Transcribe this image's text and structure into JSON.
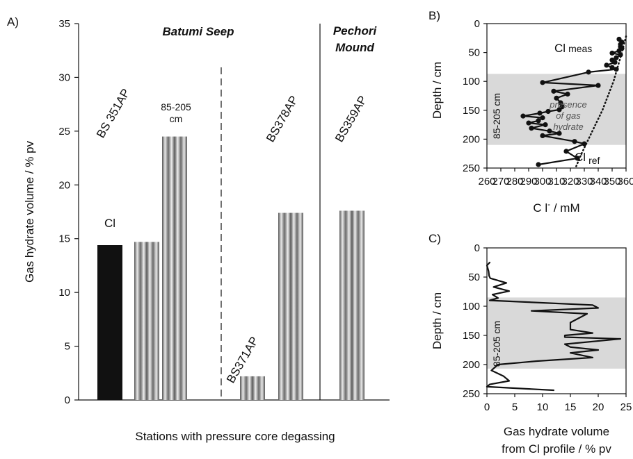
{
  "chart_data": [
    {
      "type": "bar",
      "panel_label": "A)",
      "ylabel": "Gas hydrate volume / % pv",
      "xlabel": "Stations with pressure core degassing",
      "ylim": [
        0,
        35
      ],
      "yticks": [
        0,
        5,
        10,
        15,
        20,
        25,
        30,
        35
      ],
      "sites": [
        "Batumi Seep",
        "Pechori Mound"
      ],
      "bars": [
        {
          "value": 14.4,
          "style": "solid-black",
          "label": "Cl"
        },
        {
          "value": 14.7,
          "style": "gradient-gray"
        },
        {
          "value": 24.5,
          "style": "gradient-gray",
          "label": "85-205 cm"
        },
        {
          "value": 2.2,
          "style": "gradient-gray"
        },
        {
          "value": 17.4,
          "style": "gradient-gray"
        },
        {
          "value": 17.6,
          "style": "gradient-gray"
        }
      ],
      "station_labels": [
        "BS 351AP",
        "BS371AP",
        "BS378AP",
        "BS359AP"
      ]
    },
    {
      "type": "line",
      "panel_label": "B)",
      "ylabel": "Depth / cm",
      "xlabel": "Cl⁻ / mM",
      "xlim": [
        260,
        360
      ],
      "xticks": [
        260,
        270,
        280,
        290,
        300,
        310,
        320,
        330,
        340,
        350,
        360
      ],
      "ylim": [
        0,
        250
      ],
      "yticks": [
        0,
        50,
        100,
        150,
        200,
        250
      ],
      "y_inverted": true,
      "shaded_depth_range": [
        87,
        210
      ],
      "shaded_label": "85-205 cm",
      "annotation": "presence of gas hydrate",
      "series": [
        {
          "name": "Cl meas",
          "x": [
            355,
            357,
            356,
            356,
            357,
            355,
            350,
            356,
            353,
            350,
            352,
            346,
            350,
            353,
            333,
            300,
            340,
            308,
            318,
            310,
            313,
            314,
            312,
            304,
            298,
            286,
            300,
            297,
            290,
            302,
            292,
            305,
            312,
            300,
            323,
            330,
            317,
            325,
            297
          ],
          "y": [
            27,
            32,
            36,
            40,
            43,
            47,
            51,
            54,
            59,
            63,
            67,
            72,
            76,
            79,
            84,
            102,
            107,
            117,
            122,
            129,
            137,
            144,
            149,
            152,
            155,
            160,
            163,
            168,
            172,
            175,
            181,
            186,
            190,
            194,
            204,
            208,
            221,
            233,
            244
          ]
        },
        {
          "name": "Cl ref",
          "x": [
            360,
            357,
            354,
            351,
            347,
            343,
            338,
            333,
            328,
            324
          ],
          "y": [
            22,
            50,
            75,
            100,
            125,
            150,
            175,
            200,
            225,
            248
          ]
        }
      ]
    },
    {
      "type": "line",
      "panel_label": "C)",
      "ylabel": "Depth / cm",
      "xlabel": "Gas hydrate volume from Cl profile / % pv",
      "xlim": [
        0,
        25
      ],
      "xticks": [
        0,
        5,
        10,
        15,
        20,
        25
      ],
      "ylim": [
        0,
        250
      ],
      "yticks": [
        0,
        50,
        100,
        150,
        200,
        250
      ],
      "y_inverted": true,
      "shaded_depth_range": [
        85,
        207
      ],
      "shaded_label": "85-205 cm",
      "series": [
        {
          "x": [
            0.5,
            0,
            0.3,
            0.4,
            0.6,
            3.5,
            1.2,
            4,
            1,
            2,
            0.5,
            19,
            20,
            8,
            18,
            15,
            15,
            19,
            14,
            14,
            24,
            14,
            15,
            20,
            15,
            19,
            9,
            2,
            0.8,
            3,
            4,
            0.5,
            0,
            12
          ],
          "y": [
            25,
            30,
            40,
            48,
            52,
            60,
            67,
            74,
            80,
            86,
            90,
            98,
            103,
            108,
            113,
            128,
            140,
            146,
            150,
            153,
            156,
            165,
            170,
            175,
            180,
            188,
            194,
            200,
            210,
            220,
            228,
            234,
            238,
            244
          ]
        }
      ]
    }
  ],
  "labels": {
    "panelA": "A)",
    "panelB": "B)",
    "panelC": "C)",
    "siteBatumi": "Batumi Seep",
    "sitePechoriLine1": "Pechori",
    "sitePechoriLine2": "Mound",
    "st351": "BS 351AP",
    "st371": "BS371AP",
    "st378": "BS378AP",
    "st359": "BS359AP",
    "cl": "Cl",
    "depthLine1": "85-205",
    "depthLine2": "cm",
    "yA": "Gas hydrate volume / % pv",
    "xA": "Stations with pressure core degassing",
    "yB": "Depth / cm",
    "xB_main": "C l",
    "xB_sup": "-",
    "xB_unit": " / mM",
    "clMeas": "Cl",
    "clMeasSub": "meas",
    "clRef": "Cl",
    "clRefSub": "ref",
    "presence1": "presence",
    "presence2": "of gas",
    "presence3": "hydrate",
    "shadeB": "85-205 cm",
    "yC": "Depth / cm",
    "xC1": "Gas hydrate volume",
    "xC2": "from Cl profile / % pv",
    "shadeC": "85-205 cm"
  },
  "colors": {
    "black": "#111111",
    "shade": "#d9d9d9",
    "barGradientDark": "#4a4a4a",
    "barGradientLight": "#f2f2f2"
  }
}
